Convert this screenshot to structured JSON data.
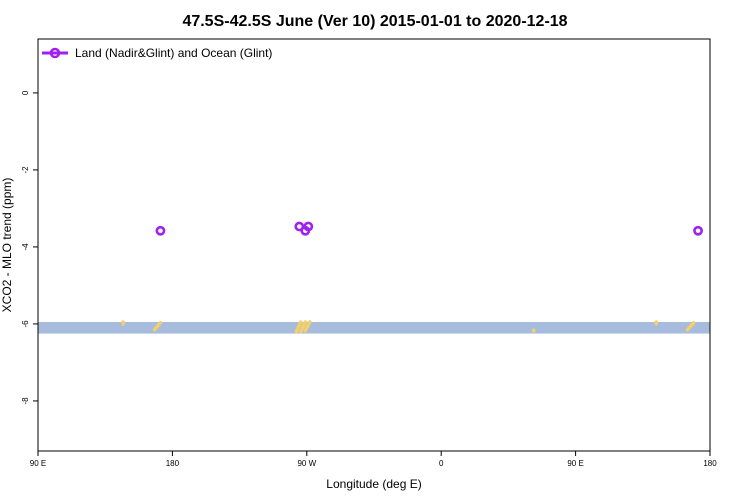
{
  "chart_data": {
    "type": "scatter",
    "title": "47.5S-42.5S June (Ver 10)   2015-01-01 to 2020-12-18",
    "xlabel": "Longitude (deg E)",
    "ylabel": "XCO2 - MLO trend (ppm)",
    "x_ticks": [
      {
        "value": 90,
        "label": "90 E"
      },
      {
        "value": 180,
        "label": "180"
      },
      {
        "value": 270,
        "label": "90 W"
      },
      {
        "value": 360,
        "label": "0"
      },
      {
        "value": 450,
        "label": "90 E"
      },
      {
        "value": 540,
        "label": "180"
      }
    ],
    "y_ticks": [
      {
        "value": 0,
        "label": "0"
      },
      {
        "value": -2,
        "label": "-2"
      },
      {
        "value": -4,
        "label": "-4"
      },
      {
        "value": -6,
        "label": "-6"
      },
      {
        "value": -8,
        "label": "-8"
      }
    ],
    "xlim": [
      90,
      540
    ],
    "ylim": [
      -9.3,
      1.4
    ],
    "land_band": {
      "ymin": -6.25,
      "ymax": -5.95,
      "color": "#a7bcdc"
    },
    "land_color": "#f5cf6b",
    "land_segments": [
      {
        "x": [
          147,
          147
        ],
        "y": [
          -5.95,
          -6.0
        ]
      },
      {
        "x": [
          168,
          172
        ],
        "y": [
          -6.15,
          -5.97
        ]
      },
      {
        "x": [
          263,
          266
        ],
        "y": [
          -6.2,
          -5.95
        ]
      },
      {
        "x": [
          266,
          269
        ],
        "y": [
          -6.2,
          -5.95
        ]
      },
      {
        "x": [
          269,
          272
        ],
        "y": [
          -6.18,
          -5.95
        ]
      },
      {
        "x": [
          422,
          422
        ],
        "y": [
          -6.18,
          -6.16
        ]
      },
      {
        "x": [
          504,
          504
        ],
        "y": [
          -5.95,
          -6.0
        ]
      },
      {
        "x": [
          525,
          529
        ],
        "y": [
          -6.15,
          -5.97
        ]
      }
    ],
    "series": [
      {
        "name": "Land (Nadir&Glint) and Ocean (Glint)",
        "color": "#a020f0",
        "x": [
          172,
          265,
          269,
          271,
          532
        ],
        "y": [
          -3.58,
          -3.47,
          -3.58,
          -3.47,
          -3.58
        ]
      }
    ],
    "legend_position": "top-left"
  }
}
